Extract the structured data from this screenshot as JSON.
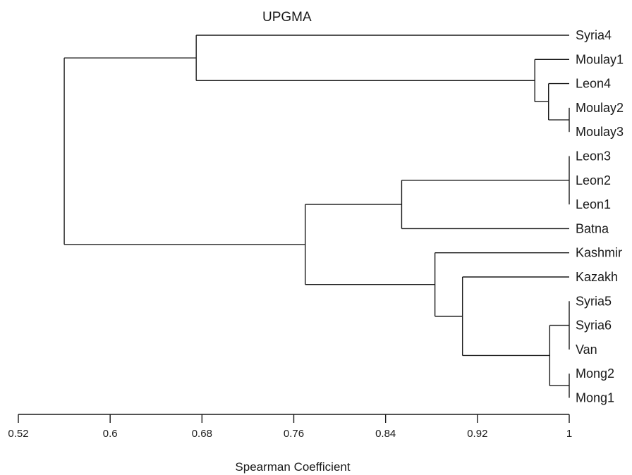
{
  "chart_data": {
    "type": "dendrogram",
    "title": "UPGMA",
    "xlabel": "Spearman Coefficient",
    "xlim": [
      0.52,
      1.0
    ],
    "x_ticks": [
      0.52,
      0.6,
      0.68,
      0.76,
      0.84,
      0.92,
      1.0
    ],
    "x_tick_labels": [
      "0.52",
      "0.6",
      "0.68",
      "0.76",
      "0.84",
      "0.92",
      "1"
    ],
    "leaves": [
      "Syria4",
      "Moulay1",
      "Leon4",
      "Moulay2",
      "Moulay3",
      "Leon3",
      "Leon2",
      "Leon1",
      "Batna",
      "Kashmir",
      "Kazakh",
      "Syria5",
      "Syria6",
      "Van",
      "Mong2",
      "Mong1"
    ],
    "merges": [
      {
        "id": "m1",
        "children": [
          "Moulay2",
          "Moulay3"
        ],
        "height": 1.0
      },
      {
        "id": "m2",
        "children": [
          "Leon4",
          "m1"
        ],
        "height": 0.982
      },
      {
        "id": "m3",
        "children": [
          "Moulay1",
          "m2"
        ],
        "height": 0.97
      },
      {
        "id": "m4",
        "children": [
          "Syria4",
          "m3"
        ],
        "height": 0.675
      },
      {
        "id": "m5",
        "children": [
          "Leon3",
          "Leon2",
          "Leon1"
        ],
        "height": 1.0
      },
      {
        "id": "m6",
        "children": [
          "m5",
          "Batna"
        ],
        "height": 0.854
      },
      {
        "id": "m7",
        "children": [
          "Syria5",
          "Syria6",
          "Van"
        ],
        "height": 1.0
      },
      {
        "id": "m8",
        "children": [
          "Mong2",
          "Mong1"
        ],
        "height": 1.0
      },
      {
        "id": "m9",
        "children": [
          "m7",
          "m8"
        ],
        "height": 0.983
      },
      {
        "id": "m10",
        "children": [
          "Kazakh",
          "m9"
        ],
        "height": 0.907
      },
      {
        "id": "m11",
        "children": [
          "Kashmir",
          "m10"
        ],
        "height": 0.883
      },
      {
        "id": "m12",
        "children": [
          "m6",
          "m11"
        ],
        "height": 0.77
      },
      {
        "id": "m13",
        "children": [
          "m4",
          "m12"
        ],
        "height": 0.56
      }
    ]
  }
}
